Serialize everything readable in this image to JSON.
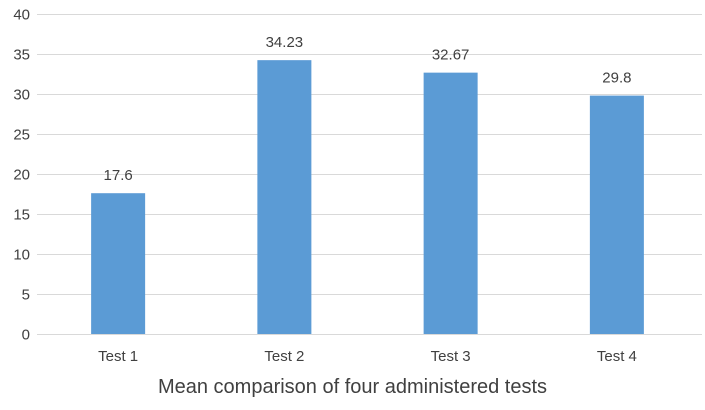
{
  "chart_data": {
    "type": "bar",
    "title": "Mean comparison of four administered tests",
    "categories": [
      "Test 1",
      "Test 2",
      "Test 3",
      "Test 4"
    ],
    "series": [
      {
        "values": [
          17.6,
          34.23,
          32.67,
          29.8
        ]
      }
    ],
    "data_labels": [
      "17.6",
      "34.23",
      "32.67",
      "29.8"
    ],
    "ylim": [
      0,
      40
    ],
    "ytick_step": 5,
    "grid": true,
    "legend": "none",
    "title_position": "bottom",
    "colors": {
      "bar": "#5B9BD5",
      "grid": "#D9D9D9",
      "text": "#404040"
    }
  }
}
